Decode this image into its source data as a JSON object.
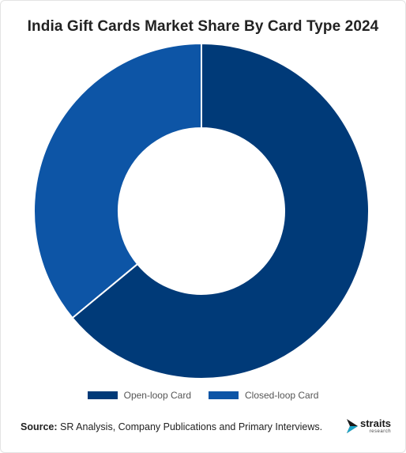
{
  "title": "India Gift Cards Market Share By Card Type 2024",
  "chart_data": {
    "type": "pie",
    "style": "donut",
    "title": "India Gift Cards Market Share By Card Type 2024",
    "categories": [
      "Open-loop Card",
      "Closed-loop Card"
    ],
    "values": [
      64,
      36
    ],
    "colors": [
      "#003a78",
      "#0d55a6"
    ],
    "legend_position": "bottom"
  },
  "legend": [
    {
      "label": "Open-loop Card",
      "color": "#003a78"
    },
    {
      "label": "Closed-loop Card",
      "color": "#0d55a6"
    }
  ],
  "footer": {
    "source_label": "Source:",
    "source_text": " SR Analysis, Company Publications and Primary Interviews."
  },
  "brand": {
    "name": "straits",
    "sub": "research",
    "logo_icon": "arrow-logo-icon"
  }
}
